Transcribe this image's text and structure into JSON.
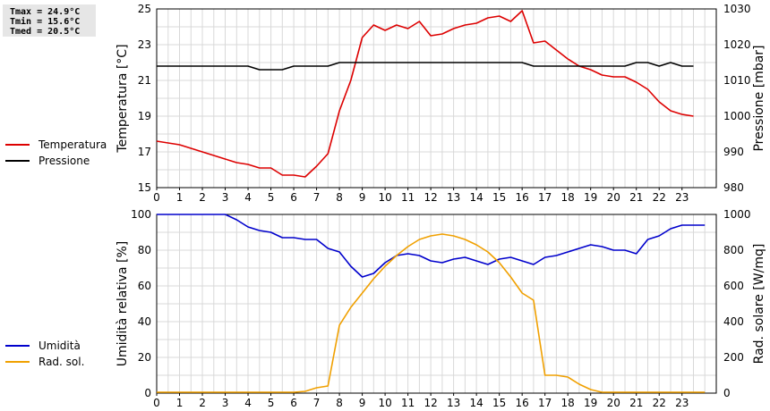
{
  "stats": {
    "tmax": "Tmax = 24.9°C",
    "tmin": "Tmin = 15.6°C",
    "tmed": "Tmed = 20.5°C"
  },
  "chart_data": [
    {
      "type": "line",
      "x_ticks": [
        0,
        1,
        2,
        3,
        4,
        5,
        6,
        7,
        8,
        9,
        10,
        11,
        12,
        13,
        14,
        15,
        16,
        17,
        18,
        19,
        20,
        21,
        22,
        23
      ],
      "xlim": [
        0,
        24.5
      ],
      "y_left": {
        "label": "Temperatura [°C]",
        "lim": [
          15,
          25
        ],
        "ticks": [
          15,
          17,
          19,
          21,
          23,
          25
        ]
      },
      "y_right": {
        "label": "Pressione [mbar]",
        "lim": [
          980,
          1030
        ],
        "ticks": [
          980,
          990,
          1000,
          1010,
          1020,
          1030
        ]
      },
      "legend": [
        {
          "name": "Temperatura",
          "color": "#dd0000"
        },
        {
          "name": "Pressione",
          "color": "#000000"
        }
      ],
      "series": [
        {
          "name": "Temperatura",
          "axis": "left",
          "color": "#dd0000",
          "points": [
            [
              0,
              17.6
            ],
            [
              1,
              17.4
            ],
            [
              1.5,
              17.2
            ],
            [
              2,
              17.0
            ],
            [
              2.5,
              16.8
            ],
            [
              3,
              16.6
            ],
            [
              3.5,
              16.4
            ],
            [
              4,
              16.3
            ],
            [
              4.5,
              16.1
            ],
            [
              5,
              16.1
            ],
            [
              5.5,
              15.7
            ],
            [
              6,
              15.7
            ],
            [
              6.5,
              15.6
            ],
            [
              7,
              16.2
            ],
            [
              7.5,
              16.9
            ],
            [
              8,
              19.3
            ],
            [
              8.5,
              21.0
            ],
            [
              9,
              23.4
            ],
            [
              9.5,
              24.1
            ],
            [
              10,
              23.8
            ],
            [
              10.5,
              24.1
            ],
            [
              11,
              23.9
            ],
            [
              11.5,
              24.3
            ],
            [
              12,
              23.5
            ],
            [
              12.5,
              23.6
            ],
            [
              13,
              23.9
            ],
            [
              13.5,
              24.1
            ],
            [
              14,
              24.2
            ],
            [
              14.5,
              24.5
            ],
            [
              15,
              24.6
            ],
            [
              15.5,
              24.3
            ],
            [
              16,
              24.9
            ],
            [
              16.5,
              23.1
            ],
            [
              17,
              23.2
            ],
            [
              17.5,
              22.7
            ],
            [
              18,
              22.2
            ],
            [
              18.5,
              21.8
            ],
            [
              19,
              21.6
            ],
            [
              19.5,
              21.3
            ],
            [
              20,
              21.2
            ],
            [
              20.5,
              21.2
            ],
            [
              21,
              20.9
            ],
            [
              21.5,
              20.5
            ],
            [
              22,
              19.8
            ],
            [
              22.5,
              19.3
            ],
            [
              23,
              19.1
            ],
            [
              23.5,
              19.0
            ]
          ]
        },
        {
          "name": "Pressione",
          "axis": "right",
          "color": "#000000",
          "points": [
            [
              0,
              1014
            ],
            [
              4,
              1014
            ],
            [
              4.5,
              1013
            ],
            [
              5.5,
              1013
            ],
            [
              6,
              1014
            ],
            [
              7.5,
              1014
            ],
            [
              8,
              1015
            ],
            [
              16,
              1015
            ],
            [
              16.5,
              1014
            ],
            [
              20.5,
              1014
            ],
            [
              21,
              1015
            ],
            [
              21.5,
              1015
            ],
            [
              22,
              1014
            ],
            [
              22.5,
              1015
            ],
            [
              23,
              1014
            ],
            [
              23.5,
              1014
            ]
          ]
        }
      ]
    },
    {
      "type": "line",
      "x_ticks": [
        0,
        1,
        2,
        3,
        4,
        5,
        6,
        7,
        8,
        9,
        10,
        11,
        12,
        13,
        14,
        15,
        16,
        17,
        18,
        19,
        20,
        21,
        22,
        23
      ],
      "xlim": [
        0,
        24.5
      ],
      "y_left": {
        "label": "Umidità relativa [%]",
        "lim": [
          0,
          100
        ],
        "ticks": [
          0,
          20,
          40,
          60,
          80,
          100
        ]
      },
      "y_right": {
        "label": "Rad. solare [W/mq]",
        "lim": [
          0,
          1000
        ],
        "ticks": [
          0,
          200,
          400,
          600,
          800,
          1000
        ]
      },
      "legend": [
        {
          "name": "Umidità",
          "color": "#0000cc"
        },
        {
          "name": "Rad. sol.",
          "color": "#f0a000"
        }
      ],
      "series": [
        {
          "name": "Umidità",
          "axis": "left",
          "color": "#0000cc",
          "points": [
            [
              0,
              100
            ],
            [
              3,
              100
            ],
            [
              3.5,
              97
            ],
            [
              4,
              93
            ],
            [
              4.5,
              91
            ],
            [
              5,
              90
            ],
            [
              5.5,
              87
            ],
            [
              6,
              87
            ],
            [
              6.5,
              86
            ],
            [
              7,
              86
            ],
            [
              7.5,
              81
            ],
            [
              8,
              79
            ],
            [
              8.5,
              71
            ],
            [
              9,
              65
            ],
            [
              9.5,
              67
            ],
            [
              10,
              73
            ],
            [
              10.5,
              77
            ],
            [
              11,
              78
            ],
            [
              11.5,
              77
            ],
            [
              12,
              74
            ],
            [
              12.5,
              73
            ],
            [
              13,
              75
            ],
            [
              13.5,
              76
            ],
            [
              14,
              74
            ],
            [
              14.5,
              72
            ],
            [
              15,
              75
            ],
            [
              15.5,
              76
            ],
            [
              16,
              74
            ],
            [
              16.5,
              72
            ],
            [
              17,
              76
            ],
            [
              17.5,
              77
            ],
            [
              18,
              79
            ],
            [
              18.5,
              81
            ],
            [
              19,
              83
            ],
            [
              19.5,
              82
            ],
            [
              20,
              80
            ],
            [
              20.5,
              80
            ],
            [
              21,
              78
            ],
            [
              21.5,
              86
            ],
            [
              22,
              88
            ],
            [
              22.5,
              92
            ],
            [
              23,
              94
            ],
            [
              23.5,
              94
            ],
            [
              24,
              94
            ]
          ]
        },
        {
          "name": "Rad. sol.",
          "axis": "right",
          "color": "#f0a000",
          "points": [
            [
              0,
              5
            ],
            [
              6,
              5
            ],
            [
              6.5,
              10
            ],
            [
              7,
              30
            ],
            [
              7.5,
              40
            ],
            [
              8,
              380
            ],
            [
              8.5,
              480
            ],
            [
              9,
              560
            ],
            [
              9.5,
              640
            ],
            [
              10,
              710
            ],
            [
              10.5,
              770
            ],
            [
              11,
              820
            ],
            [
              11.5,
              860
            ],
            [
              12,
              880
            ],
            [
              12.5,
              890
            ],
            [
              13,
              880
            ],
            [
              13.5,
              860
            ],
            [
              14,
              830
            ],
            [
              14.5,
              790
            ],
            [
              15,
              730
            ],
            [
              15.5,
              650
            ],
            [
              16,
              560
            ],
            [
              16.5,
              520
            ],
            [
              17,
              100
            ],
            [
              17.5,
              100
            ],
            [
              18,
              90
            ],
            [
              18.5,
              50
            ],
            [
              19,
              20
            ],
            [
              19.5,
              5
            ],
            [
              24,
              5
            ]
          ]
        }
      ]
    }
  ]
}
